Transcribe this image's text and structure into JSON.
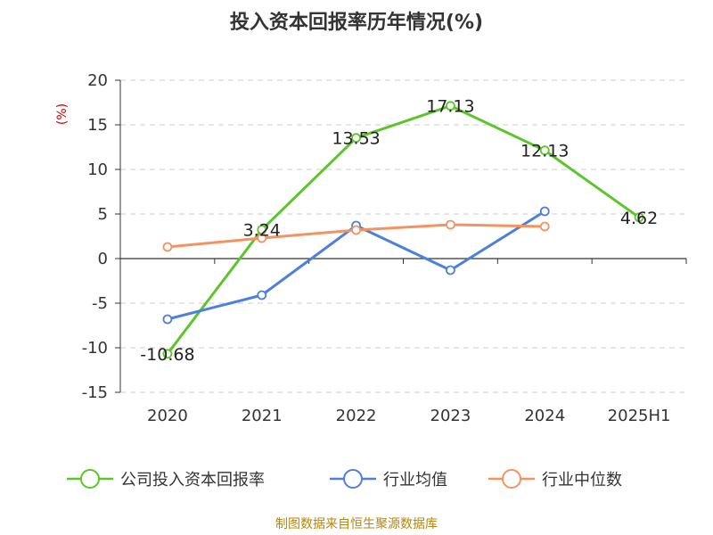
{
  "chart_data": {
    "type": "line",
    "title": "投入资本回报率历年情况(%)",
    "unit_label": "(%)",
    "categories": [
      "2020",
      "2021",
      "2022",
      "2023",
      "2024",
      "2025H1"
    ],
    "ylim": [
      -15,
      20
    ],
    "yticks": [
      20,
      15,
      10,
      5,
      0,
      -5,
      -10,
      -15
    ],
    "grid": true,
    "legend_position": "bottom",
    "series": [
      {
        "name": "公司投入资本回报率",
        "color": "#5cc52a",
        "values": [
          -10.68,
          3.24,
          13.53,
          17.13,
          12.13,
          4.62
        ],
        "labels": [
          "-10.68",
          "3.24",
          "13.53",
          "17.13",
          "12.13",
          "4.62"
        ]
      },
      {
        "name": "行业均值",
        "color": "#4f7fdc",
        "values": [
          -6.8,
          -4.1,
          3.7,
          -1.3,
          5.3,
          null
        ]
      },
      {
        "name": "行业中位数",
        "color": "#f59360",
        "values": [
          1.3,
          2.3,
          3.2,
          3.8,
          3.6,
          null
        ]
      }
    ]
  },
  "source": "制图数据来自恒生聚源数据库"
}
